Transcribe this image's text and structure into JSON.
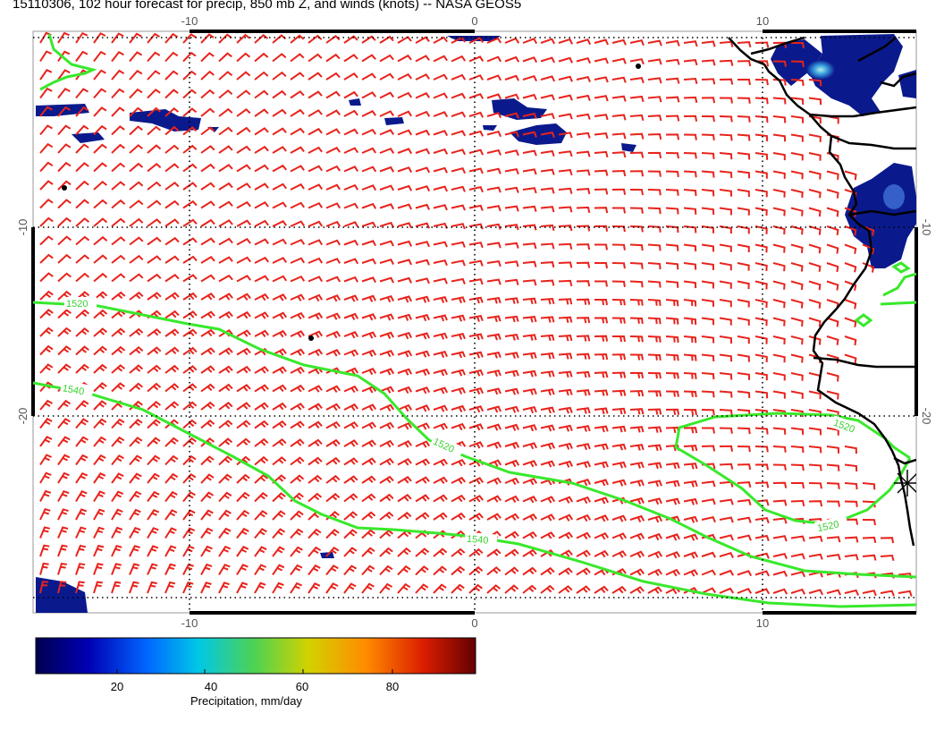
{
  "title": "15110306, 102 hour forecast for precip, 850 mb Z, and winds (knots) -- NASA GEOS5",
  "map": {
    "lon_ticks": [
      "-10",
      "0",
      "10"
    ],
    "lat_ticks": [
      "-10",
      "-20"
    ],
    "contour_labels": [
      "1520",
      "1540",
      "1520",
      "1540",
      "1520",
      "1520"
    ],
    "colors": {
      "wind_barbs": "#e8231c",
      "contours": "#39e82c",
      "coastline": "#000000",
      "gridlines": "#000000",
      "precip_low": "#0a1a8c",
      "precip_mid": "#3aa0e0"
    }
  },
  "colorbar": {
    "title": "Precipitation, mm/day",
    "tick_labels": [
      "20",
      "40",
      "60",
      "80"
    ],
    "gradient": [
      "#000050",
      "#0000b4",
      "#0064ff",
      "#00c8e6",
      "#50d250",
      "#d2d200",
      "#ff8c00",
      "#dc1e00",
      "#640000"
    ]
  }
}
